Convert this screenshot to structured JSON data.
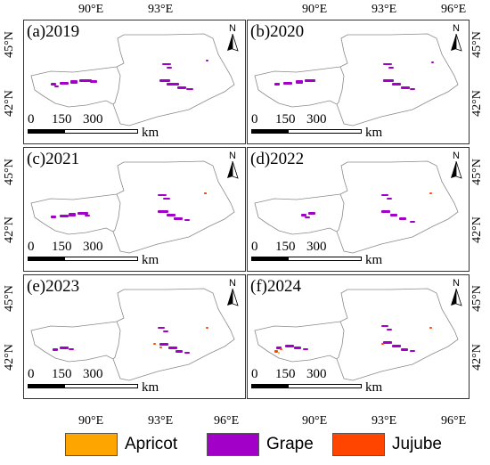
{
  "colors": {
    "apricot": "#FFA500",
    "grape": "#A200C8",
    "jujube": "#FF4500"
  },
  "axes": {
    "lon_ticks": [
      "90°E",
      "93°E",
      "96°E"
    ],
    "lat_ticks": [
      "45°N",
      "42°N"
    ]
  },
  "scale_bar": {
    "labels": [
      "0",
      "150",
      "300"
    ],
    "unit": "km"
  },
  "north_arrow": {
    "letter": "N",
    "icon": "north-arrow-icon"
  },
  "panels": [
    {
      "label": "(a)2019"
    },
    {
      "label": "(b)2020"
    },
    {
      "label": "(c)2021"
    },
    {
      "label": "(d)2022"
    },
    {
      "label": "(e)2023"
    },
    {
      "label": "(f)2024"
    }
  ],
  "legend": [
    {
      "label": "Apricot",
      "color": "#FFA500"
    },
    {
      "label": "Grape",
      "color": "#A200C8"
    },
    {
      "label": "Jujube",
      "color": "#FF4500"
    }
  ]
}
